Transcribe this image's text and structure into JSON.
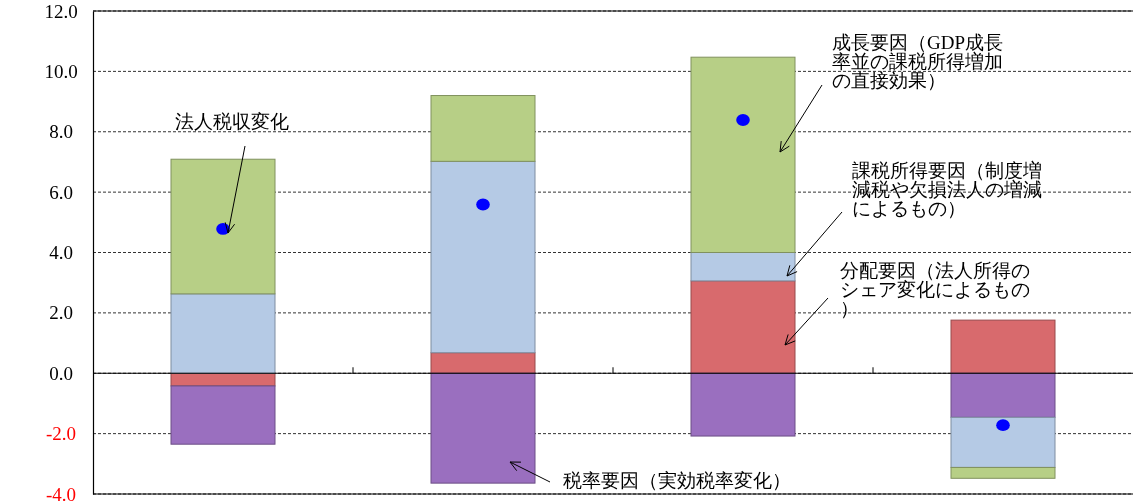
{
  "chart_data": {
    "type": "bar",
    "stacked": true,
    "categories": [
      null,
      null,
      null,
      null
    ],
    "ylim": [
      -4,
      12
    ],
    "yticks": [
      {
        "value": -4,
        "label": "-4.0"
      },
      {
        "value": -2,
        "label": "-2.0"
      },
      {
        "value": 0,
        "label": "0.0"
      },
      {
        "value": 2,
        "label": "2.0"
      },
      {
        "value": 4,
        "label": "4.0"
      },
      {
        "value": 6,
        "label": "6.0"
      },
      {
        "value": 8,
        "label": "8.0"
      },
      {
        "value": 10,
        "label": "10.0"
      },
      {
        "value": 12,
        "label": "12.0"
      }
    ],
    "grid": "y",
    "legend": "right",
    "series": [
      {
        "name": "分配要因（法人所得のシェア変化によるもの）",
        "color": "#d86a6d",
        "values": [
          -0.42,
          0.68,
          3.06,
          1.76
        ]
      },
      {
        "name": "税率要因（実効税率変化）",
        "color": "#9a6fbf",
        "values": [
          -1.93,
          -3.64,
          -2.08,
          -1.46
        ]
      },
      {
        "name": "課税所得要因（制度増減税や欠損法人の増減によるもの）",
        "color": "#b5cae5",
        "values": [
          2.63,
          6.34,
          0.94,
          -1.66
        ]
      },
      {
        "name": "成長要因（GDP成長率並の課税所得増加の直接効果）",
        "color": "#b7cf86",
        "values": [
          4.46,
          2.18,
          6.47,
          -0.36
        ]
      },
      {
        "name": "法人税収変化",
        "type": "scatter",
        "marker": "circle",
        "color": "#0000ff",
        "values": [
          4.78,
          5.59,
          8.39,
          -1.72
        ]
      }
    ]
  }
}
